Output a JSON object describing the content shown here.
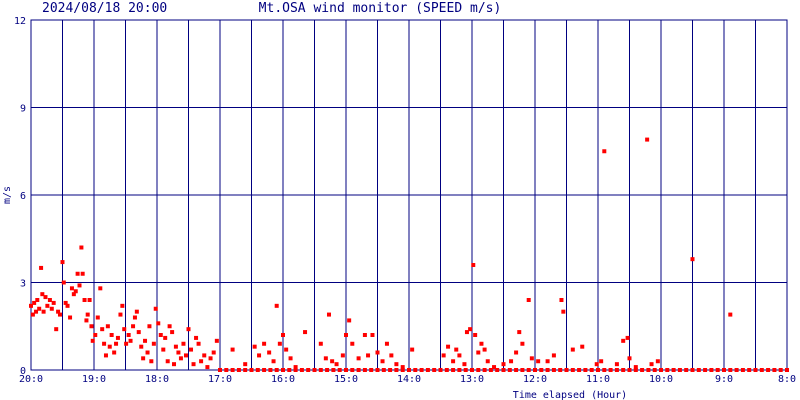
{
  "chart_data": {
    "type": "scatter",
    "timestamp": "2024/08/18 20:00",
    "title": "Mt.OSA wind monitor (SPEED m/s)",
    "x_label": "Time elapsed (Hour)",
    "y_label": "m/s",
    "color": "#ff0000",
    "grid": true,
    "xlim": [
      0,
      12
    ],
    "ylim": [
      0,
      12
    ],
    "yticks": [
      0,
      3,
      6,
      9,
      12
    ],
    "xticks": [
      {
        "value": 0,
        "label": "20:0"
      },
      {
        "value": 1,
        "label": "19:0"
      },
      {
        "value": 2,
        "label": "18:0"
      },
      {
        "value": 3,
        "label": "17:0"
      },
      {
        "value": 4,
        "label": "16:0"
      },
      {
        "value": 5,
        "label": "15:0"
      },
      {
        "value": 6,
        "label": "14:0"
      },
      {
        "value": 7,
        "label": "13:0"
      },
      {
        "value": 8,
        "label": "12:0"
      },
      {
        "value": 9,
        "label": "11:0"
      },
      {
        "value": 10,
        "label": "10:0"
      },
      {
        "value": 11,
        "label": "9:0"
      },
      {
        "value": 12,
        "label": "8:0"
      }
    ],
    "x": [
      0.0,
      0.03,
      0.05,
      0.08,
      0.1,
      0.13,
      0.16,
      0.18,
      0.2,
      0.23,
      0.26,
      0.3,
      0.33,
      0.36,
      0.4,
      0.43,
      0.46,
      0.5,
      0.52,
      0.55,
      0.58,
      0.62,
      0.65,
      0.68,
      0.71,
      0.74,
      0.77,
      0.8,
      0.82,
      0.85,
      0.88,
      0.9,
      0.93,
      0.96,
      0.98,
      1.02,
      1.06,
      1.1,
      1.13,
      1.16,
      1.19,
      1.22,
      1.25,
      1.28,
      1.32,
      1.35,
      1.38,
      1.42,
      1.45,
      1.48,
      1.51,
      1.55,
      1.58,
      1.62,
      1.65,
      1.68,
      1.71,
      1.75,
      1.78,
      1.81,
      1.85,
      1.88,
      1.91,
      1.95,
      1.98,
      2.02,
      2.06,
      2.1,
      2.13,
      2.17,
      2.2,
      2.24,
      2.27,
      2.3,
      2.34,
      2.38,
      2.42,
      2.46,
      2.5,
      2.54,
      2.58,
      2.62,
      2.66,
      2.7,
      2.75,
      2.8,
      2.85,
      2.9,
      2.95,
      3.2,
      3.4,
      3.55,
      3.62,
      3.7,
      3.78,
      3.85,
      3.9,
      3.95,
      4.0,
      4.05,
      4.12,
      4.2,
      4.35,
      4.6,
      4.68,
      4.73,
      4.78,
      4.85,
      4.95,
      5.0,
      5.05,
      5.1,
      5.2,
      5.3,
      5.35,
      5.42,
      5.5,
      5.58,
      5.65,
      5.72,
      5.8,
      5.9,
      6.05,
      6.55,
      6.62,
      6.7,
      6.75,
      6.8,
      6.88,
      6.92,
      6.97,
      7.02,
      7.05,
      7.1,
      7.15,
      7.2,
      7.25,
      7.35,
      7.5,
      7.62,
      7.7,
      7.75,
      7.8,
      7.9,
      7.95,
      8.05,
      8.2,
      8.3,
      8.42,
      8.45,
      8.6,
      8.75,
      8.98,
      9.1,
      9.05,
      9.3,
      9.4,
      9.5,
      9.47,
      9.6,
      9.78,
      9.85,
      9.95,
      10.5,
      11.1,
      3.0,
      3.1,
      3.2,
      3.3,
      3.4,
      3.5,
      3.6,
      3.7,
      3.8,
      3.9,
      4.0,
      4.1,
      4.2,
      4.3,
      4.4,
      4.5,
      4.6,
      4.7,
      4.8,
      4.9,
      5.0,
      5.1,
      5.2,
      5.3,
      5.4,
      5.5,
      5.6,
      5.7,
      5.8,
      5.9,
      6.0,
      6.1,
      6.2,
      6.3,
      6.4,
      6.5,
      6.6,
      6.7,
      6.8,
      6.9,
      7.0,
      7.1,
      7.2,
      7.3,
      7.4,
      7.5,
      7.6,
      7.7,
      7.8,
      7.9,
      8.0,
      8.1,
      8.2,
      8.3,
      8.4,
      8.5,
      8.6,
      8.7,
      8.8,
      8.9,
      9.0,
      9.1,
      9.2,
      9.3,
      9.4,
      9.5,
      9.6,
      9.7,
      9.8,
      9.9,
      10.0,
      10.1,
      10.2,
      10.3,
      10.4,
      10.5,
      10.6,
      10.7,
      10.8,
      10.9,
      11.0,
      11.1,
      11.2,
      11.3,
      11.4,
      11.5,
      11.6,
      11.7,
      11.8,
      11.9,
      12.0
    ],
    "values": [
      2.2,
      1.9,
      2.3,
      2.0,
      2.4,
      2.1,
      3.5,
      2.6,
      2.0,
      2.5,
      2.2,
      2.4,
      2.1,
      2.3,
      1.4,
      2.0,
      1.9,
      3.7,
      3.0,
      2.3,
      2.2,
      1.8,
      2.8,
      2.6,
      2.7,
      3.3,
      2.9,
      4.2,
      3.3,
      2.4,
      1.7,
      1.9,
      2.4,
      1.5,
      1.0,
      1.2,
      1.8,
      2.8,
      1.4,
      0.9,
      0.5,
      1.5,
      0.8,
      1.2,
      0.6,
      0.9,
      1.1,
      1.9,
      2.2,
      1.4,
      0.9,
      1.2,
      1.0,
      1.5,
      1.8,
      2.0,
      1.3,
      0.8,
      0.4,
      1.0,
      0.6,
      1.5,
      0.3,
      0.9,
      2.1,
      1.6,
      1.2,
      0.7,
      1.1,
      0.3,
      1.5,
      1.3,
      0.2,
      0.8,
      0.6,
      0.4,
      0.9,
      0.5,
      1.4,
      0.7,
      0.2,
      1.1,
      0.9,
      0.3,
      0.5,
      0.1,
      0.4,
      0.6,
      1.0,
      0.7,
      0.2,
      0.8,
      0.5,
      0.9,
      0.6,
      0.3,
      2.2,
      0.9,
      1.2,
      0.7,
      0.4,
      0.1,
      1.3,
      0.9,
      0.4,
      1.9,
      0.3,
      0.2,
      0.5,
      1.2,
      1.7,
      0.9,
      0.4,
      1.2,
      0.5,
      1.2,
      0.6,
      0.3,
      0.9,
      0.5,
      0.2,
      0.1,
      0.7,
      0.5,
      0.8,
      0.3,
      0.7,
      0.5,
      0.2,
      1.3,
      1.4,
      3.6,
      1.2,
      0.6,
      0.9,
      0.7,
      0.3,
      0.1,
      0.2,
      0.3,
      0.6,
      1.3,
      0.9,
      2.4,
      0.4,
      0.3,
      0.3,
      0.5,
      2.4,
      2.0,
      0.7,
      0.8,
      0.2,
      7.5,
      0.3,
      0.2,
      1.0,
      0.4,
      1.1,
      0.1,
      7.9,
      0.2,
      0.3,
      3.8,
      1.9,
      0,
      0,
      0,
      0,
      0,
      0,
      0,
      0,
      0,
      0,
      0,
      0,
      0,
      0,
      0,
      0,
      0,
      0,
      0,
      0,
      0,
      0,
      0,
      0,
      0,
      0,
      0,
      0,
      0,
      0,
      0,
      0,
      0,
      0,
      0,
      0,
      0,
      0,
      0,
      0,
      0,
      0,
      0,
      0,
      0,
      0,
      0,
      0,
      0,
      0,
      0,
      0,
      0,
      0,
      0,
      0,
      0,
      0,
      0,
      0,
      0,
      0,
      0,
      0,
      0,
      0,
      0,
      0,
      0,
      0,
      0,
      0,
      0,
      0,
      0,
      0,
      0,
      0,
      0,
      0,
      0,
      0,
      0,
      0,
      0,
      0,
      0,
      0,
      0,
      0,
      0
    ]
  }
}
